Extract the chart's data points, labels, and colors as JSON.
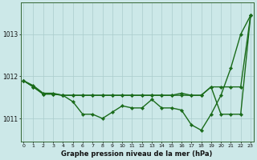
{
  "xlabel": "Graphe pression niveau de la mer (hPa)",
  "bg_color": "#cce8e8",
  "plot_bg_color": "#cce8e8",
  "grid_color": "#aacccc",
  "line_color": "#1a6b1a",
  "hours": [
    0,
    1,
    2,
    3,
    4,
    5,
    6,
    7,
    8,
    9,
    10,
    11,
    12,
    13,
    14,
    15,
    16,
    17,
    18,
    19,
    20,
    21,
    22,
    23
  ],
  "series1": [
    1011.9,
    1011.75,
    1011.58,
    1011.58,
    1011.55,
    1011.4,
    1011.1,
    1011.1,
    1011.0,
    1011.15,
    1011.3,
    1011.25,
    1011.25,
    1011.45,
    1011.25,
    1011.25,
    1011.2,
    1010.85,
    1010.72,
    1011.1,
    1011.55,
    1012.2,
    1013.0,
    1013.45
  ],
  "series2": [
    1011.9,
    1011.75,
    1011.58,
    1011.58,
    1011.55,
    1011.55,
    1011.55,
    1011.55,
    1011.55,
    1011.55,
    1011.55,
    1011.55,
    1011.55,
    1011.55,
    1011.55,
    1011.55,
    1011.55,
    1011.55,
    1011.55,
    1011.75,
    1011.75,
    1011.75,
    1011.75,
    1013.45
  ],
  "series3": [
    1011.9,
    1011.78,
    1011.6,
    1011.6,
    1011.55,
    1011.55,
    1011.55,
    1011.55,
    1011.55,
    1011.55,
    1011.55,
    1011.55,
    1011.55,
    1011.55,
    1011.55,
    1011.55,
    1011.6,
    1011.55,
    1011.55,
    1011.75,
    1011.1,
    1011.1,
    1011.1,
    1013.45
  ],
  "ylim_min": 1010.45,
  "ylim_max": 1013.75,
  "yticks": [
    1011,
    1012,
    1013
  ],
  "xticks": [
    0,
    1,
    2,
    3,
    4,
    5,
    6,
    7,
    8,
    9,
    10,
    11,
    12,
    13,
    14,
    15,
    16,
    17,
    18,
    19,
    20,
    21,
    22,
    23
  ],
  "markersize": 2.2,
  "linewidth": 1.0
}
